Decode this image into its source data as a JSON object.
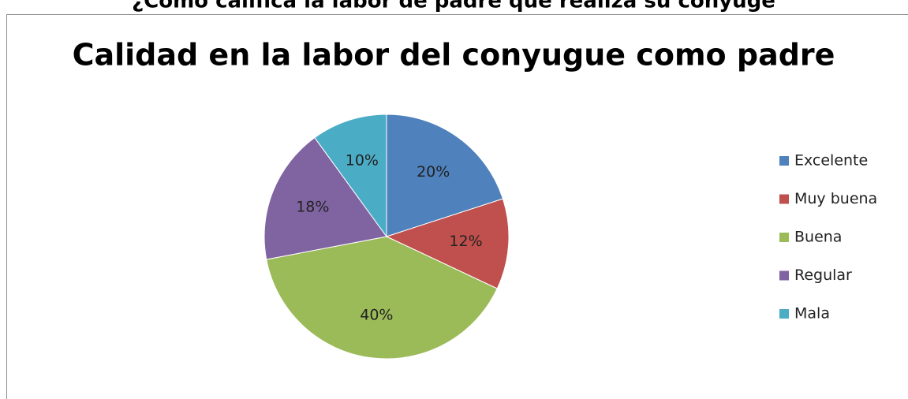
{
  "header": {
    "question": "¿Cómo califica la labor de padre que realiza su conyuge"
  },
  "chart_data": {
    "type": "pie",
    "title": "Calidad en la labor del conyugue como padre",
    "categories": [
      "Excelente",
      "Muy buena",
      "Buena",
      "Regular",
      "Mala"
    ],
    "values": [
      20,
      12,
      40,
      18,
      10
    ],
    "value_labels": [
      "20%",
      "12%",
      "40%",
      "18%",
      "10%"
    ],
    "colors": [
      "#4f81bd",
      "#c0504d",
      "#9bbb59",
      "#8064a2",
      "#4bacc6"
    ],
    "legend": "right"
  }
}
